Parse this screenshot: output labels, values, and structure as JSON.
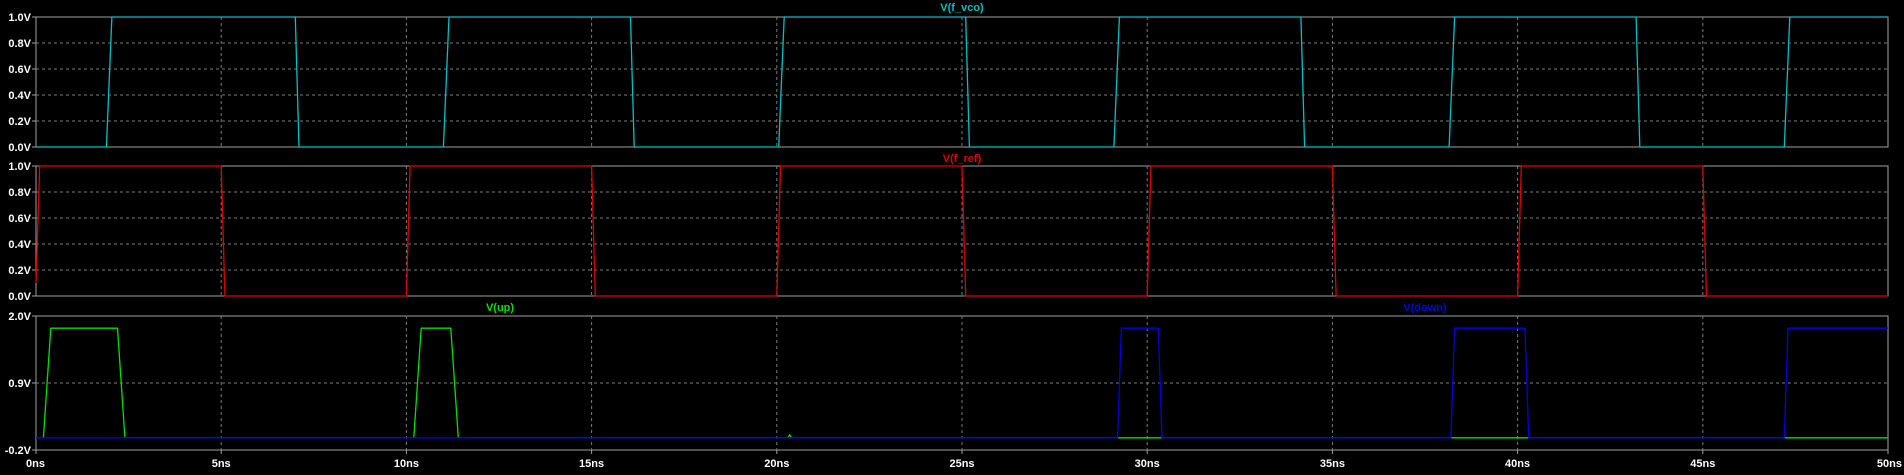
{
  "app": "LTspice waveform viewer",
  "chart_data": [
    {
      "type": "line",
      "title": "V(f_vco)",
      "xlabel": "",
      "ylabel": "",
      "xlim": [
        0,
        50
      ],
      "x_unit": "ns",
      "ylim": [
        0,
        1
      ],
      "yticks": [
        0,
        0.2,
        0.4,
        0.6,
        0.8,
        1.0
      ],
      "ytick_labels": [
        "0.0V",
        "0.2V",
        "0.4V",
        "0.6V",
        "0.8V",
        "1.0V"
      ],
      "grid": true,
      "series": [
        {
          "name": "V(f_vco)",
          "color": "#00c0c0",
          "points": [
            [
              0,
              0
            ],
            [
              1.9,
              0
            ],
            [
              2.05,
              1
            ],
            [
              7.0,
              1
            ],
            [
              7.1,
              0
            ],
            [
              11.0,
              0
            ],
            [
              11.15,
              1
            ],
            [
              16.05,
              1
            ],
            [
              16.15,
              0
            ],
            [
              20.05,
              0
            ],
            [
              20.2,
              1
            ],
            [
              25.1,
              1
            ],
            [
              25.2,
              0
            ],
            [
              29.1,
              0
            ],
            [
              29.25,
              1
            ],
            [
              34.15,
              1
            ],
            [
              34.25,
              0
            ],
            [
              38.15,
              0
            ],
            [
              38.3,
              1
            ],
            [
              43.2,
              1
            ],
            [
              43.3,
              0
            ],
            [
              47.2,
              0
            ],
            [
              47.35,
              1
            ],
            [
              50,
              1
            ]
          ]
        }
      ]
    },
    {
      "type": "line",
      "title": "V(f_ref)",
      "xlabel": "",
      "ylabel": "",
      "xlim": [
        0,
        50
      ],
      "x_unit": "ns",
      "ylim": [
        0,
        1
      ],
      "yticks": [
        0,
        0.2,
        0.4,
        0.6,
        0.8,
        1.0
      ],
      "ytick_labels": [
        "0.0V",
        "0.2V",
        "0.4V",
        "0.6V",
        "0.8V",
        "1.0V"
      ],
      "grid": true,
      "series": [
        {
          "name": "V(f_ref)",
          "color": "#e00000",
          "points": [
            [
              0,
              0.1
            ],
            [
              0.1,
              1
            ],
            [
              5.0,
              1
            ],
            [
              5.1,
              0
            ],
            [
              10.0,
              0
            ],
            [
              10.1,
              1
            ],
            [
              15.0,
              1
            ],
            [
              15.1,
              0
            ],
            [
              20.0,
              0
            ],
            [
              20.1,
              1
            ],
            [
              25.0,
              1
            ],
            [
              25.1,
              0
            ],
            [
              30.0,
              0
            ],
            [
              30.1,
              1
            ],
            [
              35.0,
              1
            ],
            [
              35.1,
              0
            ],
            [
              40.0,
              0
            ],
            [
              40.1,
              1
            ],
            [
              45.0,
              1
            ],
            [
              45.1,
              0
            ],
            [
              50,
              0
            ]
          ]
        }
      ]
    },
    {
      "type": "line",
      "title": "",
      "xlabel": "",
      "ylabel": "",
      "xlim": [
        0,
        50
      ],
      "x_unit": "ns",
      "ylim": [
        -0.2,
        2.0
      ],
      "yticks": [
        -0.2,
        0.9,
        2.0
      ],
      "ytick_labels": [
        "-0.2V",
        "0.9V",
        "2.0V"
      ],
      "xticks": [
        0,
        5,
        10,
        15,
        20,
        25,
        30,
        35,
        40,
        45,
        50
      ],
      "xtick_labels": [
        "0ns",
        "5ns",
        "10ns",
        "15ns",
        "20ns",
        "25ns",
        "30ns",
        "35ns",
        "40ns",
        "45ns",
        "50ns"
      ],
      "grid": true,
      "series": [
        {
          "name": "V(up)",
          "color": "#00e000",
          "points": [
            [
              0,
              0
            ],
            [
              0.2,
              0
            ],
            [
              0.4,
              1.8
            ],
            [
              2.2,
              1.8
            ],
            [
              2.4,
              0
            ],
            [
              10.2,
              0
            ],
            [
              10.4,
              1.8
            ],
            [
              11.2,
              1.8
            ],
            [
              11.4,
              0
            ],
            [
              20.3,
              0
            ],
            [
              20.35,
              0.05
            ],
            [
              20.4,
              0
            ],
            [
              29.2,
              0
            ],
            [
              30.4,
              0
            ],
            [
              38.2,
              0
            ],
            [
              40.3,
              0
            ],
            [
              47.2,
              0
            ],
            [
              50,
              0
            ]
          ]
        },
        {
          "name": "V(down)",
          "color": "#0000e0",
          "points": [
            [
              0,
              0
            ],
            [
              29.2,
              0
            ],
            [
              29.3,
              1.8
            ],
            [
              30.3,
              1.8
            ],
            [
              30.4,
              0
            ],
            [
              38.2,
              0
            ],
            [
              38.3,
              1.8
            ],
            [
              40.2,
              1.8
            ],
            [
              40.3,
              0
            ],
            [
              47.2,
              0
            ],
            [
              47.3,
              1.8
            ],
            [
              50,
              1.8
            ]
          ]
        }
      ]
    }
  ]
}
